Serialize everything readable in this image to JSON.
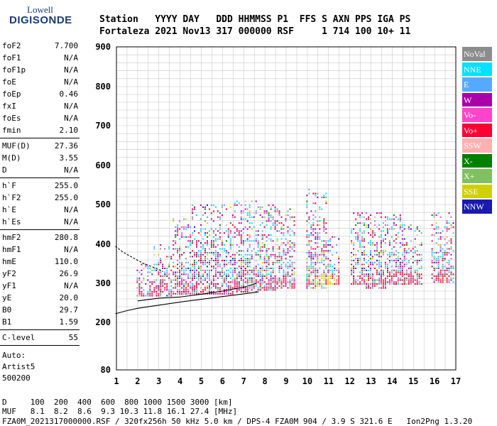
{
  "logo": {
    "top": "Lowell",
    "bottom": "DIGISONDE"
  },
  "header": {
    "line1": "Station   YYYY DAY   DDD HHMMSS P1  FFS S AXN PPS IGA PS",
    "line2": "Fortaleza 2021 Nov13 317 000000 RSF     1 714 100 10+ 11"
  },
  "params_group1": [
    {
      "label": "foF2",
      "value": "7.700"
    },
    {
      "label": "foF1",
      "value": "N/A"
    },
    {
      "label": "foF1p",
      "value": "N/A"
    },
    {
      "label": "foE",
      "value": "N/A"
    },
    {
      "label": "foEp",
      "value": "0.46"
    },
    {
      "label": "fxI",
      "value": "N/A"
    },
    {
      "label": "foEs",
      "value": "N/A"
    },
    {
      "label": "fmin",
      "value": "2.10"
    }
  ],
  "params_group2": [
    {
      "label": "MUF(D)",
      "value": "27.36"
    },
    {
      "label": "M(D)",
      "value": "3.55"
    },
    {
      "label": "D",
      "value": "N/A"
    }
  ],
  "params_group3": [
    {
      "label": "h`F",
      "value": "255.0"
    },
    {
      "label": "h`F2",
      "value": "255.0"
    },
    {
      "label": "h`E",
      "value": "N/A"
    },
    {
      "label": "h`Es",
      "value": "N/A"
    }
  ],
  "params_group4": [
    {
      "label": "hmF2",
      "value": "280.8"
    },
    {
      "label": "hmF1",
      "value": "N/A"
    },
    {
      "label": "hmE",
      "value": "110.0"
    },
    {
      "label": "yF2",
      "value": "26.9"
    },
    {
      "label": "yF1",
      "value": "N/A"
    },
    {
      "label": "yE",
      "value": "20.0"
    },
    {
      "label": "B0",
      "value": "29.7"
    },
    {
      "label": "B1",
      "value": "1.59"
    }
  ],
  "clevel": {
    "label": "C-level",
    "value": "55"
  },
  "auto": [
    "Auto:",
    "Artist5",
    "500200"
  ],
  "legend": [
    {
      "label": "NoVal",
      "color": "#8c8c8c"
    },
    {
      "label": "NNE",
      "color": "#00e0ff"
    },
    {
      "label": "E",
      "color": "#55aaff"
    },
    {
      "label": "W",
      "color": "#aa00aa"
    },
    {
      "label": "Vo-",
      "color": "#ff44cc"
    },
    {
      "label": "Vo+",
      "color": "#ff0033"
    },
    {
      "label": "SSW",
      "color": "#ffb0b0"
    },
    {
      "label": "X-",
      "color": "#008000"
    },
    {
      "label": "X+",
      "color": "#80c060"
    },
    {
      "label": "SSE",
      "color": "#d0d000"
    },
    {
      "label": "NNW",
      "color": "#1a1ab0"
    }
  ],
  "bottom": {
    "d_line": "D     100  200  400  600  800 1000 1500 3000 [km]",
    "muf_line": "MUF   8.1  8.2  8.6  9.3 10.3 11.8 16.1 27.4 [MHz]",
    "file_line": "FZA0M_2021317000000.RSF / 320fx256h 50 kHz 5.0 km / DPS-4 FZA0M 904 / 3.9 S 321.6 E   Ion2Png 1.3.20"
  },
  "chart_data": {
    "type": "scatter",
    "x_ticks": [
      "1",
      "2",
      "3",
      "4",
      "5",
      "6",
      "7",
      "8",
      "9",
      "10",
      "11",
      "12",
      "13",
      "14",
      "15",
      "16",
      "17"
    ],
    "y_ticks": [
      "80",
      "200",
      "300",
      "400",
      "500",
      "600",
      "700",
      "800",
      "900"
    ],
    "xlim": [
      1,
      17
    ],
    "ylim": [
      80,
      900
    ],
    "y_scale": "nonlinear (reciprocal-like, compressed toward bottom)",
    "x_unit": "MHz",
    "y_unit": "km",
    "traces": [
      {
        "name": "profile",
        "x": [
          0.95,
          1.3,
          1.8,
          2.3,
          2.8,
          3.2
        ],
        "y": [
          395,
          380,
          365,
          350,
          340,
          330
        ]
      },
      {
        "name": "lower",
        "x": [
          0.95,
          1.5,
          2.0,
          3.0,
          4.0,
          5.0,
          6.0,
          7.0,
          7.7
        ],
        "y": [
          222,
          230,
          236,
          244,
          252,
          259,
          266,
          273,
          278
        ]
      },
      {
        "name": "upper",
        "x": [
          2.0,
          3.0,
          4.0,
          5.0,
          6.0,
          7.0,
          7.6
        ],
        "y": [
          255,
          262,
          265,
          272,
          280,
          290,
          300
        ]
      }
    ],
    "clusters": [
      {
        "x": [
          1.9,
          2.7
        ],
        "ymin": 270,
        "ymax": 350
      },
      {
        "x": [
          2.7,
          3.6
        ],
        "ymin": 270,
        "ymax": 400
      },
      {
        "x": [
          3.6,
          4.5
        ],
        "ymin": 275,
        "ymax": 470
      },
      {
        "x": [
          4.5,
          5.5
        ],
        "ymin": 275,
        "ymax": 500
      },
      {
        "x": [
          5.5,
          6.5
        ],
        "ymin": 275,
        "ymax": 500
      },
      {
        "x": [
          6.5,
          7.6
        ],
        "ymin": 280,
        "ymax": 510
      },
      {
        "x": [
          7.6,
          8.5
        ],
        "ymin": 285,
        "ymax": 500
      },
      {
        "x": [
          8.5,
          9.4
        ],
        "ymin": 290,
        "ymax": 490
      },
      {
        "x": [
          9.9,
          10.9
        ],
        "ymin": 290,
        "ymax": 540
      },
      {
        "x": [
          10.9,
          11.5
        ],
        "ymin": 300,
        "ymax": 420
      },
      {
        "x": [
          12.0,
          12.7
        ],
        "ymin": 300,
        "ymax": 480
      },
      {
        "x": [
          12.7,
          13.7
        ],
        "ymin": 290,
        "ymax": 480
      },
      {
        "x": [
          13.7,
          14.6
        ],
        "ymin": 300,
        "ymax": 480
      },
      {
        "x": [
          14.6,
          15.4
        ],
        "ymin": 300,
        "ymax": 450
      },
      {
        "x": [
          15.8,
          16.9
        ],
        "ymin": 305,
        "ymax": 480
      }
    ]
  }
}
